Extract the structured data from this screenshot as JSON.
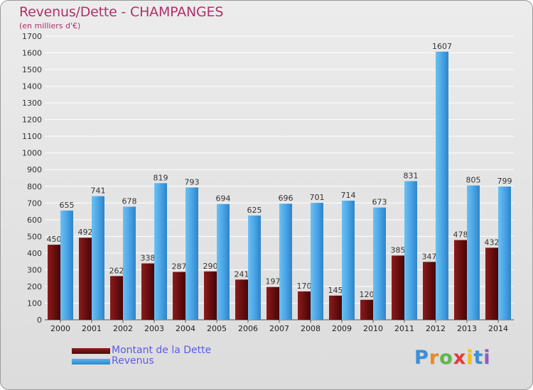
{
  "title": "Revenus/Dette - CHAMPANGES",
  "subtitle": "(en milliers d'€)",
  "legend": {
    "debt_label": "Montant de la Dette",
    "revenue_label": "Revenus"
  },
  "logo_text": "Proxiti",
  "colors": {
    "debt": "#6a0f10",
    "revenue": "#4aa5e6",
    "title": "#b0306a",
    "legend_text": "#5a5ce8"
  },
  "chart_data": {
    "type": "bar",
    "title": "Revenus/Dette - CHAMPANGES",
    "ylabel": "(en milliers d'€)",
    "xlabel": "",
    "ylim": [
      0,
      1700
    ],
    "yticks": [
      0,
      100,
      200,
      300,
      400,
      500,
      600,
      700,
      800,
      900,
      1000,
      1100,
      1200,
      1300,
      1400,
      1500,
      1600,
      1700
    ],
    "categories": [
      "2000",
      "2001",
      "2002",
      "2003",
      "2004",
      "2005",
      "2006",
      "2007",
      "2008",
      "2009",
      "2010",
      "2011",
      "2012",
      "2013",
      "2014"
    ],
    "series": [
      {
        "name": "Montant de la Dette",
        "values": [
          450,
          492,
          262,
          338,
          287,
          290,
          241,
          197,
          170,
          145,
          120,
          385,
          347,
          478,
          432
        ]
      },
      {
        "name": "Revenus",
        "values": [
          655,
          741,
          678,
          819,
          793,
          694,
          625,
          696,
          701,
          714,
          673,
          831,
          1607,
          805,
          799
        ]
      }
    ],
    "legend_position": "bottom-left"
  }
}
